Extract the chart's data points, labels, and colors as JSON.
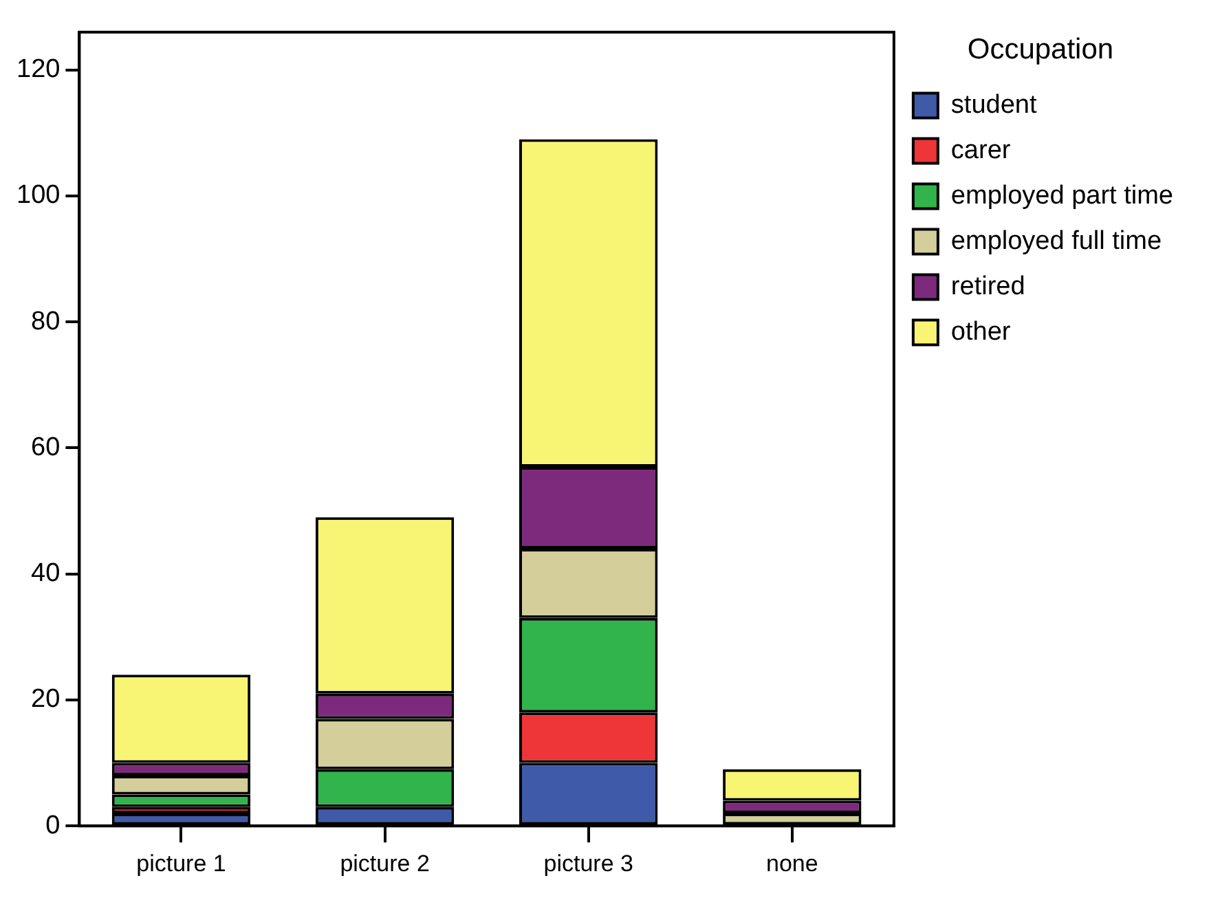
{
  "chart_data": {
    "type": "bar",
    "stacked": true,
    "legend_title": "Occupation",
    "legend": "right",
    "grid": false,
    "categories": [
      "picture 1",
      "picture 2",
      "picture 3",
      "none"
    ],
    "series": [
      {
        "name": "student",
        "color": "#3f5aa8",
        "values": [
          2,
          3,
          10,
          0
        ]
      },
      {
        "name": "carer",
        "color": "#ee3537",
        "values": [
          1,
          0,
          8,
          0
        ]
      },
      {
        "name": "employed part time",
        "color": "#31b44b",
        "values": [
          2,
          6,
          15,
          0
        ]
      },
      {
        "name": "employed full time",
        "color": "#d3ce9a",
        "values": [
          3,
          8,
          11,
          2
        ]
      },
      {
        "name": "retired",
        "color": "#7d2a7c",
        "values": [
          2,
          4,
          13,
          2
        ]
      },
      {
        "name": "other",
        "color": "#f9f574",
        "values": [
          14,
          28,
          52,
          5
        ]
      }
    ],
    "ylim": [
      0,
      126
    ],
    "yticks": [
      0,
      20,
      40,
      60,
      80,
      100,
      120
    ]
  }
}
